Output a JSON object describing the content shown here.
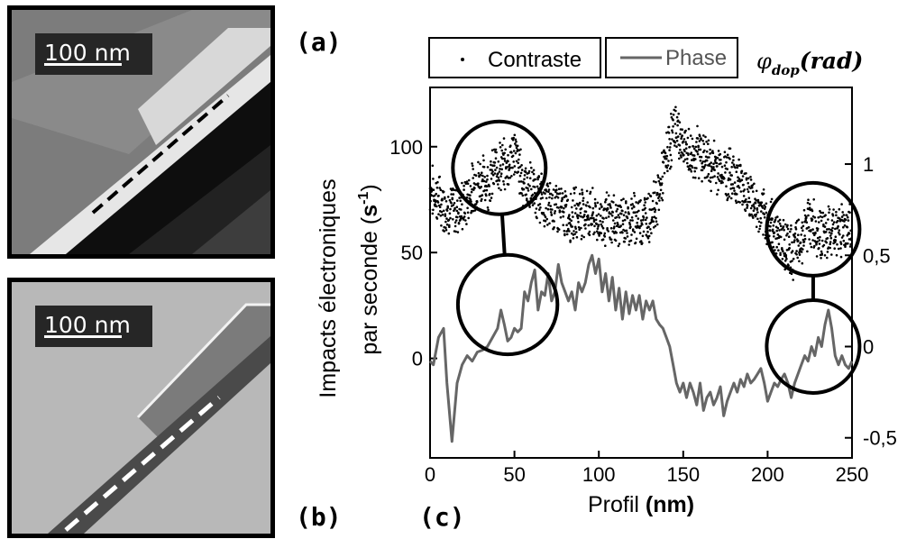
{
  "panels": {
    "a": "(a)",
    "b": "(b)",
    "c": "(c)"
  },
  "micrographs": [
    {
      "scale_label": "100 nm"
    },
    {
      "scale_label": "100 nm"
    }
  ],
  "chart_data": {
    "type": "scatter",
    "xlabel": {
      "prefix": "Profil ",
      "unit": "(nm)"
    },
    "ylabel": {
      "line1": "Impacts électroniques",
      "line2_prefix": "par seconde (",
      "line2_base": "s",
      "line2_sup": "-1",
      "line2_suffix": ")"
    },
    "y2label": {
      "symbol": "φ",
      "subscript": "dop",
      "unit": "(rad)"
    },
    "xlim": [
      0,
      250
    ],
    "ylim": [
      -47,
      128
    ],
    "y2lim": [
      -0.61,
      1.42
    ],
    "xticks": [
      "0",
      "50",
      "100",
      "150",
      "200",
      "250"
    ],
    "yticks": [
      "0",
      "50",
      "100"
    ],
    "y2ticks": [
      "-0,5",
      "0",
      "0,5",
      "1"
    ],
    "legend": [
      {
        "name": "Contraste",
        "marker": "dot"
      },
      {
        "name": "Phase",
        "marker": "line"
      }
    ],
    "colors": {
      "contraste": "#000000",
      "phase": "#666666"
    },
    "series": [
      {
        "name": "Contraste",
        "axis": "left",
        "profile": [
          [
            0,
            80
          ],
          [
            5,
            75
          ],
          [
            10,
            71
          ],
          [
            15,
            70
          ],
          [
            20,
            72
          ],
          [
            25,
            80
          ],
          [
            30,
            85
          ],
          [
            35,
            82
          ],
          [
            40,
            92
          ],
          [
            45,
            90
          ],
          [
            50,
            98
          ],
          [
            55,
            84
          ],
          [
            60,
            80
          ],
          [
            65,
            76
          ],
          [
            70,
            72
          ],
          [
            75,
            72
          ],
          [
            80,
            68
          ],
          [
            85,
            68
          ],
          [
            90,
            70
          ],
          [
            95,
            68
          ],
          [
            100,
            65
          ],
          [
            105,
            66
          ],
          [
            110,
            65
          ],
          [
            115,
            64
          ],
          [
            120,
            66
          ],
          [
            125,
            66
          ],
          [
            130,
            68
          ],
          [
            135,
            75
          ],
          [
            140,
            95
          ],
          [
            145,
            110
          ],
          [
            150,
            100
          ],
          [
            155,
            95
          ],
          [
            160,
            98
          ],
          [
            165,
            92
          ],
          [
            170,
            90
          ],
          [
            175,
            88
          ],
          [
            180,
            86
          ],
          [
            185,
            82
          ],
          [
            190,
            76
          ],
          [
            195,
            68
          ],
          [
            200,
            65
          ],
          [
            205,
            60
          ],
          [
            210,
            55
          ],
          [
            215,
            50
          ],
          [
            220,
            57
          ],
          [
            225,
            65
          ],
          [
            230,
            60
          ],
          [
            235,
            58
          ],
          [
            240,
            60
          ],
          [
            245,
            62
          ],
          [
            250,
            63
          ]
        ]
      },
      {
        "name": "Phase",
        "axis": "right",
        "points": [
          [
            0,
            -0.08
          ],
          [
            2,
            -0.1
          ],
          [
            5,
            0.05
          ],
          [
            8,
            0.1
          ],
          [
            10,
            -0.2
          ],
          [
            13,
            -0.52
          ],
          [
            16,
            -0.2
          ],
          [
            19,
            -0.1
          ],
          [
            22,
            -0.05
          ],
          [
            25,
            -0.08
          ],
          [
            28,
            -0.03
          ],
          [
            31,
            -0.02
          ],
          [
            34,
            0.0
          ],
          [
            37,
            0.05
          ],
          [
            40,
            0.1
          ],
          [
            42,
            0.2
          ],
          [
            44,
            0.12
          ],
          [
            46,
            0.03
          ],
          [
            48,
            0.05
          ],
          [
            50,
            0.1
          ],
          [
            52,
            0.08
          ],
          [
            54,
            0.1
          ],
          [
            56,
            0.3
          ],
          [
            58,
            0.25
          ],
          [
            60,
            0.35
          ],
          [
            62,
            0.42
          ],
          [
            64,
            0.2
          ],
          [
            66,
            0.3
          ],
          [
            68,
            0.28
          ],
          [
            70,
            0.4
          ],
          [
            72,
            0.25
          ],
          [
            74,
            0.3
          ],
          [
            76,
            0.45
          ],
          [
            78,
            0.35
          ],
          [
            80,
            0.3
          ],
          [
            82,
            0.25
          ],
          [
            84,
            0.3
          ],
          [
            86,
            0.2
          ],
          [
            88,
            0.35
          ],
          [
            90,
            0.3
          ],
          [
            92,
            0.35
          ],
          [
            94,
            0.45
          ],
          [
            96,
            0.5
          ],
          [
            98,
            0.4
          ],
          [
            100,
            0.48
          ],
          [
            102,
            0.3
          ],
          [
            104,
            0.4
          ],
          [
            106,
            0.25
          ],
          [
            108,
            0.38
          ],
          [
            110,
            0.2
          ],
          [
            112,
            0.32
          ],
          [
            114,
            0.15
          ],
          [
            116,
            0.3
          ],
          [
            118,
            0.18
          ],
          [
            120,
            0.28
          ],
          [
            122,
            0.2
          ],
          [
            124,
            0.28
          ],
          [
            126,
            0.15
          ],
          [
            128,
            0.25
          ],
          [
            130,
            0.2
          ],
          [
            132,
            0.25
          ],
          [
            134,
            0.15
          ],
          [
            136,
            0.12
          ],
          [
            138,
            0.1
          ],
          [
            140,
            0.05
          ],
          [
            142,
            0.0
          ],
          [
            144,
            -0.1
          ],
          [
            146,
            -0.2
          ],
          [
            148,
            -0.25
          ],
          [
            150,
            -0.2
          ],
          [
            152,
            -0.28
          ],
          [
            154,
            -0.2
          ],
          [
            156,
            -0.25
          ],
          [
            158,
            -0.32
          ],
          [
            160,
            -0.2
          ],
          [
            162,
            -0.35
          ],
          [
            164,
            -0.28
          ],
          [
            166,
            -0.25
          ],
          [
            168,
            -0.32
          ],
          [
            170,
            -0.28
          ],
          [
            172,
            -0.22
          ],
          [
            174,
            -0.38
          ],
          [
            176,
            -0.3
          ],
          [
            178,
            -0.25
          ],
          [
            180,
            -0.2
          ],
          [
            182,
            -0.25
          ],
          [
            184,
            -0.18
          ],
          [
            186,
            -0.22
          ],
          [
            188,
            -0.15
          ],
          [
            190,
            -0.2
          ],
          [
            192,
            -0.18
          ],
          [
            194,
            -0.15
          ],
          [
            196,
            -0.12
          ],
          [
            198,
            -0.2
          ],
          [
            200,
            -0.3
          ],
          [
            202,
            -0.25
          ],
          [
            204,
            -0.2
          ],
          [
            206,
            -0.22
          ],
          [
            208,
            -0.18
          ],
          [
            210,
            -0.15
          ],
          [
            212,
            -0.2
          ],
          [
            214,
            -0.28
          ],
          [
            216,
            -0.2
          ],
          [
            218,
            -0.15
          ],
          [
            220,
            -0.1
          ],
          [
            222,
            -0.05
          ],
          [
            224,
            -0.08
          ],
          [
            226,
            0.0
          ],
          [
            228,
            -0.05
          ],
          [
            230,
            0.05
          ],
          [
            232,
            0.0
          ],
          [
            234,
            0.12
          ],
          [
            236,
            0.2
          ],
          [
            238,
            0.1
          ],
          [
            240,
            -0.05
          ],
          [
            242,
            -0.1
          ],
          [
            244,
            -0.05
          ],
          [
            246,
            -0.1
          ],
          [
            248,
            -0.12
          ],
          [
            250,
            -0.08
          ]
        ]
      }
    ],
    "annotations": [
      {
        "shape": "circle",
        "axis": "left",
        "cx": 41,
        "cy": 90,
        "r_nm": 27.5
      },
      {
        "shape": "circle",
        "axis": "right",
        "cx": 46,
        "cy": 0.23,
        "r_nm": 29.5
      },
      {
        "shape": "circle",
        "axis": "left",
        "cx": 227,
        "cy": 61,
        "r_nm": 27.5
      },
      {
        "shape": "circle",
        "axis": "right",
        "cx": 227,
        "cy": 0.0,
        "r_nm": 27.5
      }
    ],
    "connectors": [
      [
        0,
        1
      ],
      [
        2,
        3
      ]
    ]
  }
}
